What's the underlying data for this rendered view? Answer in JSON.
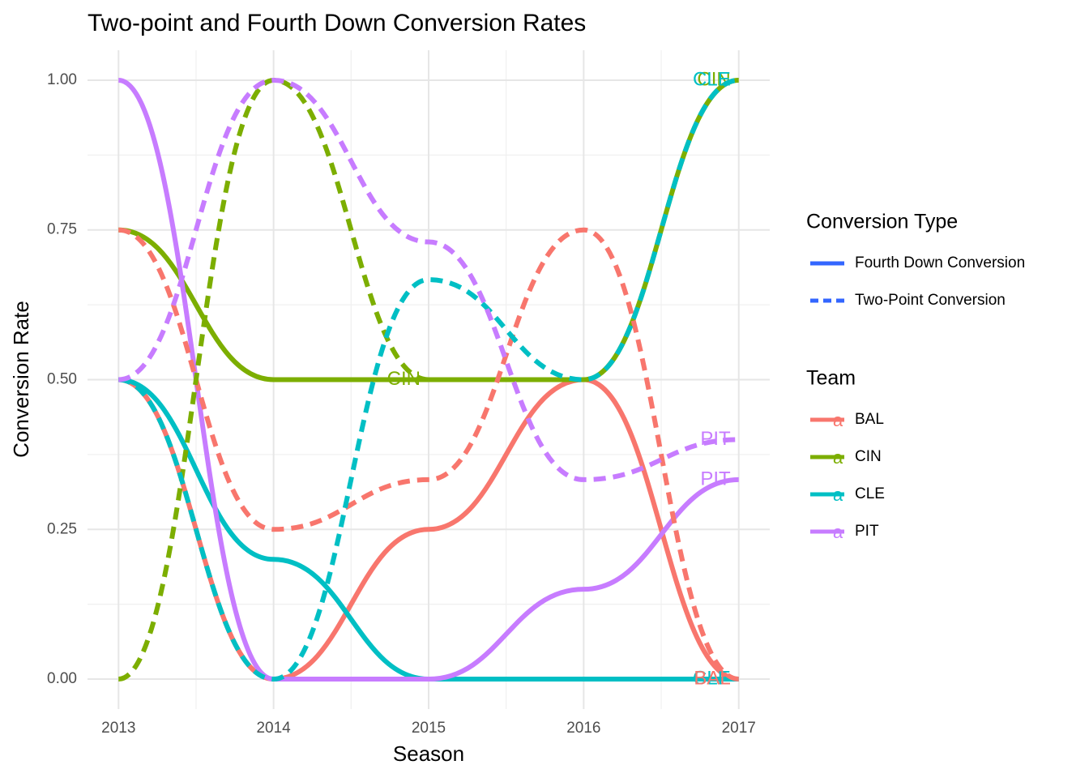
{
  "chart_data": {
    "type": "line",
    "title": "Two-point and Fourth Down Conversion Rates",
    "xlabel": "Season",
    "ylabel": "Conversion Rate",
    "x": [
      2013,
      2014,
      2015,
      2016,
      2017
    ],
    "xlim": [
      2012.8,
      2017.2
    ],
    "xticks": [
      2013,
      2014,
      2015,
      2016,
      2017
    ],
    "ylim": [
      -0.05,
      1.05
    ],
    "yticks": [
      {
        "value": 0,
        "label": "0.00"
      },
      {
        "value": 0.25,
        "label": "0.25"
      },
      {
        "value": 0.5,
        "label": "0.50"
      },
      {
        "value": 0.75,
        "label": "0.75"
      },
      {
        "value": 1,
        "label": "1.00"
      }
    ],
    "grid": true,
    "type_legend_title": "Conversion Type",
    "types": [
      {
        "name": "Fourth Down Conversion",
        "dashed": false
      },
      {
        "name": "Two-Point Conversion",
        "dashed": true
      }
    ],
    "team_legend_title": "Team",
    "legend_key_glyph": "a",
    "teams": [
      {
        "name": "BAL",
        "color": "#F8766D"
      },
      {
        "name": "CIN",
        "color": "#7CAE00"
      },
      {
        "name": "CLE",
        "color": "#00BFC4"
      },
      {
        "name": "PIT",
        "color": "#C77CFF"
      }
    ],
    "series": [
      {
        "team": 0,
        "type": 0,
        "values": [
          0.5,
          0,
          0.25,
          0.5,
          0
        ]
      },
      {
        "team": 1,
        "type": 0,
        "values": [
          0.75,
          0.5,
          0.5,
          0.5,
          1
        ]
      },
      {
        "team": 2,
        "type": 0,
        "values": [
          0.5,
          0.2,
          0,
          0,
          0
        ]
      },
      {
        "team": 3,
        "type": 0,
        "values": [
          1,
          0,
          0,
          0.15,
          0.333
        ]
      },
      {
        "team": 0,
        "type": 1,
        "values": [
          0.75,
          0.25,
          0.333,
          0.75,
          0
        ]
      },
      {
        "team": 1,
        "type": 1,
        "values": [
          0,
          1,
          0.5,
          null,
          null
        ]
      },
      {
        "team": 2,
        "type": 1,
        "values": [
          0.5,
          0,
          0.667,
          0.5,
          1
        ]
      },
      {
        "team": 3,
        "type": 1,
        "values": [
          0.5,
          1,
          0.73,
          0.333,
          0.4
        ]
      }
    ]
  }
}
